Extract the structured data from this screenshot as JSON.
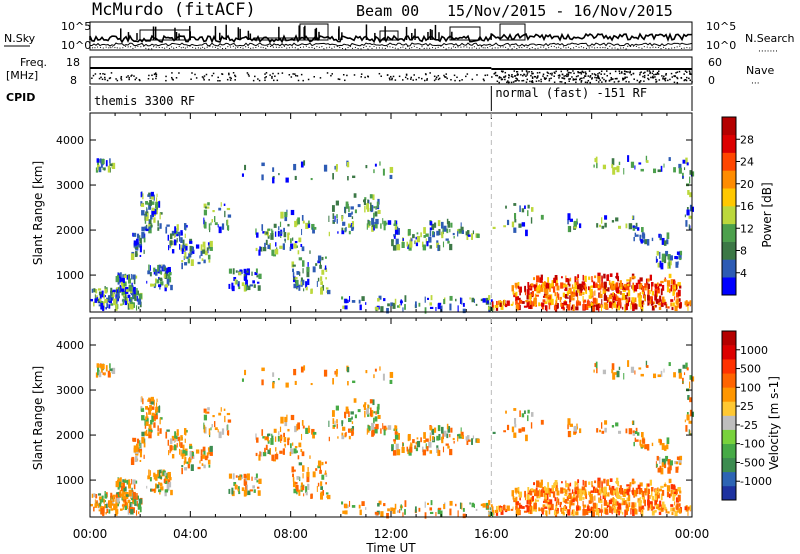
{
  "header": {
    "station": "McMurdo (fitACF)",
    "beam": "Beam 00",
    "date_range": "15/Nov/2015 - 16/Nov/2015"
  },
  "strip_labels": {
    "nsky": "N.Sky",
    "nsearch": "N.Search",
    "nsearch_dots": "·······",
    "freq_top": "Freq.",
    "freq_unit": "[MHz]",
    "nave": "Nave",
    "nave_dots": "···",
    "cpid": "CPID",
    "sky_top_tick": "10^5",
    "sky_bot_tick": "10^0",
    "search_top_tick": "10^5",
    "search_bot_tick": "10^0",
    "freq_top_tick": "18",
    "freq_bot_tick": "8",
    "nave_top_tick": "60",
    "nave_bot_tick": "0"
  },
  "cpid_modes": [
    {
      "label": "themis 3300 RF",
      "start_hour": 0
    },
    {
      "label": "normal (fast) -151 RF",
      "start_hour": 16
    }
  ],
  "chart_data": [
    {
      "type": "heatmap",
      "title": "Power",
      "ylabel": "Slant Range [km]",
      "xlabel": "Time UT",
      "ylim": [
        180,
        4600
      ],
      "xlim_hours": [
        0,
        24
      ],
      "yticks": [
        1000,
        2000,
        3000,
        4000
      ],
      "xtick_labels": [
        "00:00",
        "04:00",
        "08:00",
        "12:00",
        "16:00",
        "20:00",
        "00:00"
      ],
      "colorbar": {
        "label": "Power [dB]",
        "range": [
          0,
          32
        ],
        "ticks": [
          "4",
          "8",
          "12",
          "16",
          "20",
          "24",
          "28"
        ],
        "colors": [
          "#0000ff",
          "#2d5bb4",
          "#3c7846",
          "#4ca04c",
          "#bcd83c",
          "#ffc800",
          "#ff8c00",
          "#ff4600",
          "#dc0000",
          "#b40000"
        ]
      }
    },
    {
      "type": "heatmap",
      "title": "Velocity",
      "ylabel": "Slant Range [km]",
      "xlabel": "Time UT",
      "ylim": [
        180,
        4600
      ],
      "xlim_hours": [
        0,
        24
      ],
      "yticks": [
        1000,
        2000,
        3000,
        4000
      ],
      "xtick_labels": [
        "00:00",
        "04:00",
        "08:00",
        "12:00",
        "16:00",
        "20:00",
        "00:00"
      ],
      "colorbar": {
        "label": "Velocity [m s-1]",
        "ticks": [
          "1000",
          "500",
          "100",
          "25",
          "-25",
          "-100",
          "-500",
          "-1000"
        ],
        "colors": [
          "#1e32a0",
          "#2d64b4",
          "#3c8c50",
          "#46aa46",
          "#78d23c",
          "#bebebe",
          "#ffc832",
          "#ff9600",
          "#ff6400",
          "#ff3200",
          "#dc0000",
          "#b40000"
        ]
      }
    }
  ]
}
